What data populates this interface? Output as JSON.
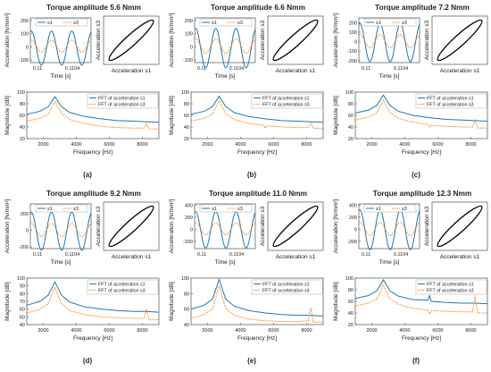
{
  "figure": {
    "panels": [
      {
        "title": "Torque amplitude 5.6 Nmm",
        "caption": "(a)"
      },
      {
        "title": "Torque amplitude 6.6 Nmm",
        "caption": "(b)"
      },
      {
        "title": "Torque amplitude 7.2 Nmm",
        "caption": "(c)"
      },
      {
        "title": "Torque amplitude 9.2 Nmm",
        "caption": "(d)"
      },
      {
        "title": "Torque amplitude 11.0 Nmm",
        "caption": "(e)"
      },
      {
        "title": "Torque amplitude 12.3 Nmm",
        "caption": "(f)"
      }
    ]
  },
  "colors": {
    "s1": "#1f77b4",
    "s3": "#ff7f0e"
  },
  "chart_data": [
    {
      "type": "line",
      "panel": "a-time",
      "ylabel": "Acceleration [N/mm²]",
      "xlabel": "Time [s]",
      "x_tick_labels": [
        "0.11",
        "0.1104"
      ],
      "ylim": [
        -120,
        220
      ],
      "y_ticks": [
        -100,
        0,
        100,
        200
      ],
      "series": [
        {
          "name": "s1",
          "amplitude": 130,
          "offset": -10
        },
        {
          "name": "s3",
          "amplitude": 45,
          "offset": 5
        }
      ],
      "legend": [
        "s1",
        "s3"
      ],
      "legend_position": "top"
    },
    {
      "type": "line",
      "panel": "a-loop",
      "xlabel": "Acceleration s1",
      "ylabel": "Acceleration s3"
    },
    {
      "type": "line",
      "panel": "a-fft",
      "xlabel": "Frequency [Hz]",
      "ylabel": "Magnitude [dB]",
      "xlim": [
        1000,
        9000
      ],
      "x_ticks": [
        2000,
        4000,
        6000,
        8000
      ],
      "ylim": [
        20,
        100
      ],
      "y_ticks": [
        20,
        40,
        60,
        80,
        100
      ],
      "series": [
        {
          "name": "FFT of acceleration s1",
          "points": [
            [
              1000,
              62
            ],
            [
              1800,
              67
            ],
            [
              2300,
              75
            ],
            [
              2700,
              92
            ],
            [
              3100,
              75
            ],
            [
              3600,
              65
            ],
            [
              4500,
              58
            ],
            [
              5500,
              54
            ],
            [
              6500,
              51
            ],
            [
              7500,
              50
            ],
            [
              8200,
              49
            ],
            [
              9000,
              48
            ]
          ]
        },
        {
          "name": "FFT of acceleration s3",
          "points": [
            [
              1000,
              50
            ],
            [
              1800,
              55
            ],
            [
              2300,
              62
            ],
            [
              2700,
              84
            ],
            [
              3100,
              63
            ],
            [
              3600,
              53
            ],
            [
              4500,
              46
            ],
            [
              5500,
              41
            ],
            [
              6500,
              39
            ],
            [
              7500,
              38
            ],
            [
              8100,
              38
            ],
            [
              8250,
              46
            ],
            [
              8400,
              37
            ],
            [
              9000,
              36
            ]
          ]
        }
      ],
      "legend_position": "right"
    },
    {
      "type": "line",
      "panel": "b-time",
      "ylabel": "Acceleration [N/mm²]",
      "xlabel": "Time [s]",
      "x_tick_labels": [
        "0.11",
        "0.1104"
      ],
      "ylim": [
        -120,
        220
      ],
      "y_ticks": [
        -100,
        0,
        100,
        200
      ],
      "series": [
        {
          "name": "s1",
          "amplitude": 150,
          "offset": -10
        },
        {
          "name": "s3",
          "amplitude": 55,
          "offset": 5
        }
      ],
      "legend": [
        "s1",
        "s3"
      ],
      "legend_position": "top"
    },
    {
      "type": "line",
      "panel": "b-loop",
      "xlabel": "Acceleration s1",
      "ylabel": "Acceleration s3"
    },
    {
      "type": "line",
      "panel": "b-fft",
      "xlabel": "Frequency [Hz]",
      "ylabel": "Magnitude [dB]",
      "xlim": [
        1000,
        9000
      ],
      "x_ticks": [
        2000,
        4000,
        6000,
        8000
      ],
      "ylim": [
        20,
        100
      ],
      "y_ticks": [
        20,
        40,
        60,
        80,
        100
      ],
      "series": [
        {
          "name": "FFT of acceleration s1",
          "points": [
            [
              1000,
              62
            ],
            [
              1800,
              67
            ],
            [
              2300,
              75
            ],
            [
              2700,
              93
            ],
            [
              3100,
              75
            ],
            [
              3600,
              65
            ],
            [
              4500,
              58
            ],
            [
              5500,
              54
            ],
            [
              6500,
              51
            ],
            [
              7500,
              50
            ],
            [
              8200,
              49
            ],
            [
              9000,
              48
            ]
          ]
        },
        {
          "name": "FFT of acceleration s3",
          "points": [
            [
              1000,
              50
            ],
            [
              1800,
              55
            ],
            [
              2300,
              62
            ],
            [
              2700,
              85
            ],
            [
              3100,
              63
            ],
            [
              3600,
              53
            ],
            [
              4500,
              46
            ],
            [
              5400,
              43
            ],
            [
              5500,
              38
            ],
            [
              5600,
              42
            ],
            [
              6500,
              40
            ],
            [
              7500,
              39
            ],
            [
              8100,
              39
            ],
            [
              8250,
              47
            ],
            [
              8400,
              38
            ],
            [
              9000,
              37
            ]
          ]
        }
      ],
      "legend_position": "right"
    },
    {
      "type": "line",
      "panel": "c-time",
      "ylabel": "Acceleration [N/mm²]",
      "xlabel": "Time [s]",
      "x_tick_labels": [
        "0.11",
        "0.1104"
      ],
      "ylim": [
        -220,
        250
      ],
      "y_ticks": [
        -200,
        -100,
        0,
        100,
        200
      ],
      "series": [
        {
          "name": "s1",
          "amplitude": 200,
          "offset": -10
        },
        {
          "name": "s3",
          "amplitude": 70,
          "offset": 5
        }
      ],
      "legend": [
        "s1",
        "s3"
      ],
      "legend_position": "top"
    },
    {
      "type": "line",
      "panel": "c-loop",
      "xlabel": "Acceleration s1",
      "ylabel": "Acceleration s3"
    },
    {
      "type": "line",
      "panel": "c-fft",
      "xlabel": "Frequency [Hz]",
      "ylabel": "Magnitude [dB]",
      "xlim": [
        1000,
        9000
      ],
      "x_ticks": [
        2000,
        4000,
        6000,
        8000
      ],
      "ylim": [
        20,
        100
      ],
      "y_ticks": [
        20,
        40,
        60,
        80,
        100
      ],
      "series": [
        {
          "name": "FFT of acceleration s1",
          "points": [
            [
              1000,
              64
            ],
            [
              1800,
              69
            ],
            [
              2300,
              77
            ],
            [
              2700,
              95
            ],
            [
              3100,
              77
            ],
            [
              3600,
              67
            ],
            [
              4500,
              60
            ],
            [
              5500,
              56
            ],
            [
              6500,
              53
            ],
            [
              7500,
              52
            ],
            [
              8200,
              51
            ],
            [
              9000,
              50
            ]
          ]
        },
        {
          "name": "FFT of acceleration s3",
          "points": [
            [
              1000,
              52
            ],
            [
              1800,
              57
            ],
            [
              2300,
              64
            ],
            [
              2700,
              86
            ],
            [
              3100,
              65
            ],
            [
              3600,
              55
            ],
            [
              4500,
              48
            ],
            [
              5400,
              44
            ],
            [
              5500,
              40
            ],
            [
              5600,
              43
            ],
            [
              6500,
              41
            ],
            [
              7500,
              40
            ],
            [
              8100,
              40
            ],
            [
              8250,
              52
            ],
            [
              8400,
              38
            ],
            [
              9000,
              38
            ]
          ]
        }
      ],
      "legend_position": "right"
    },
    {
      "type": "line",
      "panel": "d-time",
      "ylabel": "Acceleration [N/mm²]",
      "xlabel": "Time [s]",
      "x_tick_labels": [
        "0.11",
        "0.1104"
      ],
      "ylim": [
        -220,
        320
      ],
      "y_ticks": [
        -200,
        0,
        200
      ],
      "series": [
        {
          "name": "s1",
          "amplitude": 230,
          "offset": -10
        },
        {
          "name": "s3",
          "amplitude": 80,
          "offset": 5
        }
      ],
      "legend": [
        "s1",
        "s3"
      ],
      "legend_position": "top"
    },
    {
      "type": "line",
      "panel": "d-loop",
      "xlabel": "Acceleration s1",
      "ylabel": "Acceleration s3"
    },
    {
      "type": "line",
      "panel": "d-fft",
      "xlabel": "Frequency [Hz]",
      "ylabel": "Magnitude [dB]",
      "xlim": [
        1000,
        9000
      ],
      "x_ticks": [
        2000,
        4000,
        6000,
        8000
      ],
      "ylim": [
        40,
        100
      ],
      "y_ticks": [
        40,
        50,
        60,
        70,
        80,
        90,
        100
      ],
      "series": [
        {
          "name": "FFT of acceleration s1",
          "points": [
            [
              1000,
              65
            ],
            [
              1800,
              70
            ],
            [
              2300,
              78
            ],
            [
              2700,
              95
            ],
            [
              3100,
              78
            ],
            [
              3600,
              69
            ],
            [
              4500,
              63
            ],
            [
              5500,
              60
            ],
            [
              6500,
              58
            ],
            [
              7500,
              57
            ],
            [
              8200,
              57
            ],
            [
              9000,
              56
            ]
          ]
        },
        {
          "name": "FFT of acceleration s3",
          "points": [
            [
              1000,
              55
            ],
            [
              1800,
              60
            ],
            [
              2300,
              67
            ],
            [
              2700,
              88
            ],
            [
              3100,
              67
            ],
            [
              3600,
              58
            ],
            [
              4500,
              53
            ],
            [
              5500,
              50
            ],
            [
              6500,
              49
            ],
            [
              7500,
              48
            ],
            [
              8100,
              48
            ],
            [
              8250,
              60
            ],
            [
              8400,
              46
            ],
            [
              9000,
              46
            ]
          ]
        }
      ],
      "legend_position": "right"
    },
    {
      "type": "line",
      "panel": "e-time",
      "ylabel": "Acceleration [N/mm²]",
      "xlabel": "Time [s]",
      "x_tick_labels": [
        "0.11",
        "0.1104"
      ],
      "ylim": [
        -320,
        420
      ],
      "y_ticks": [
        -200,
        0,
        200,
        400
      ],
      "series": [
        {
          "name": "s1",
          "amplitude": 300,
          "offset": -10
        },
        {
          "name": "s3",
          "amplitude": 100,
          "offset": 5
        }
      ],
      "legend": [
        "s1",
        "s3"
      ],
      "legend_position": "top"
    },
    {
      "type": "line",
      "panel": "e-loop",
      "xlabel": "Acceleration s1",
      "ylabel": "Acceleration s3"
    },
    {
      "type": "line",
      "panel": "e-fft",
      "xlabel": "Frequency [Hz]",
      "ylabel": "Magnitude [dB]",
      "xlim": [
        1000,
        9000
      ],
      "x_ticks": [
        2000,
        4000,
        6000,
        8000
      ],
      "ylim": [
        40,
        100
      ],
      "y_ticks": [
        40,
        60,
        80,
        100
      ],
      "series": [
        {
          "name": "FFT of acceleration s1",
          "points": [
            [
              1000,
              60
            ],
            [
              1800,
              65
            ],
            [
              2300,
              73
            ],
            [
              2700,
              98
            ],
            [
              3100,
              73
            ],
            [
              3600,
              64
            ],
            [
              4500,
              58
            ],
            [
              5500,
              55
            ],
            [
              6500,
              53
            ],
            [
              7500,
              52
            ],
            [
              8200,
              52
            ],
            [
              9000,
              51
            ]
          ]
        },
        {
          "name": "FFT of acceleration s3",
          "points": [
            [
              1000,
              48
            ],
            [
              1800,
              53
            ],
            [
              2300,
              60
            ],
            [
              2700,
              90
            ],
            [
              3100,
              61
            ],
            [
              3600,
              52
            ],
            [
              4500,
              47
            ],
            [
              5500,
              45
            ],
            [
              6500,
              44
            ],
            [
              7500,
              44
            ],
            [
              8100,
              45
            ],
            [
              8250,
              62
            ],
            [
              8400,
              43
            ],
            [
              9000,
              43
            ]
          ]
        }
      ],
      "legend_position": "right"
    },
    {
      "type": "line",
      "panel": "f-time",
      "ylabel": "Acceleration [N/mm²]",
      "xlabel": "Time [s]",
      "x_tick_labels": [
        "0.11",
        "0.1104"
      ],
      "ylim": [
        -320,
        420
      ],
      "y_ticks": [
        -200,
        0,
        200,
        400
      ],
      "series": [
        {
          "name": "s1",
          "amplitude": 330,
          "offset": -10
        },
        {
          "name": "s3",
          "amplitude": 110,
          "offset": 5
        }
      ],
      "legend": [
        "s1",
        "s3"
      ],
      "legend_position": "top"
    },
    {
      "type": "line",
      "panel": "f-loop",
      "xlabel": "Acceleration s1",
      "ylabel": "Acceleration s3"
    },
    {
      "type": "line",
      "panel": "f-fft",
      "xlabel": "Frequency [Hz]",
      "ylabel": "Magnitude [dB]",
      "xlim": [
        1000,
        9000
      ],
      "x_ticks": [
        2000,
        4000,
        6000,
        8000
      ],
      "ylim": [
        20,
        100
      ],
      "y_ticks": [
        20,
        40,
        60,
        80,
        100
      ],
      "series": [
        {
          "name": "FFT of acceleration s1",
          "points": [
            [
              1000,
              65
            ],
            [
              1800,
              70
            ],
            [
              2300,
              78
            ],
            [
              2700,
              97
            ],
            [
              3100,
              78
            ],
            [
              3600,
              69
            ],
            [
              4500,
              63
            ],
            [
              5400,
              62
            ],
            [
              5500,
              70
            ],
            [
              5600,
              60
            ],
            [
              6500,
              58
            ],
            [
              7500,
              57
            ],
            [
              8200,
              57
            ],
            [
              9000,
              56
            ]
          ]
        },
        {
          "name": "FFT of acceleration s3",
          "points": [
            [
              1000,
              52
            ],
            [
              1800,
              57
            ],
            [
              2300,
              64
            ],
            [
              2700,
              88
            ],
            [
              3100,
              64
            ],
            [
              3600,
              55
            ],
            [
              4500,
              48
            ],
            [
              5400,
              45
            ],
            [
              5500,
              38
            ],
            [
              5600,
              44
            ],
            [
              6500,
              43
            ],
            [
              7500,
              42
            ],
            [
              8100,
              42
            ],
            [
              8250,
              70
            ],
            [
              8400,
              40
            ],
            [
              9000,
              40
            ]
          ]
        }
      ],
      "legend_position": "right"
    }
  ]
}
